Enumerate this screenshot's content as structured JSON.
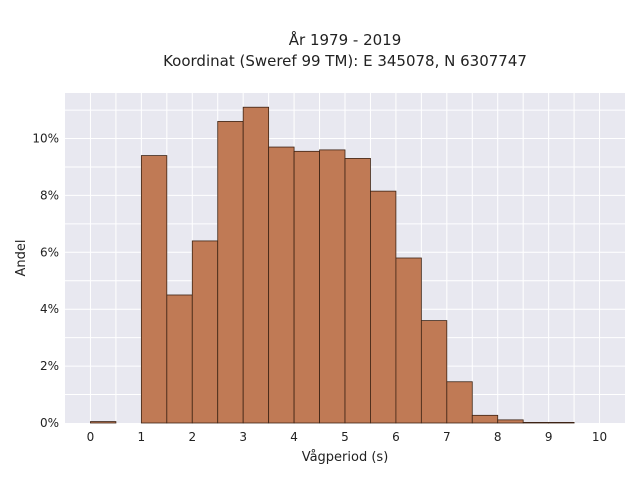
{
  "chart_data": {
    "type": "bar",
    "title_lines": [
      "År 1979 - 2019",
      "Koordinat (Sweref 99 TM): E 345078, N 6307747"
    ],
    "xlabel": "Vågperiod (s)",
    "ylabel": "Andel",
    "xlim": [
      -0.5,
      10.5
    ],
    "ylim": [
      0,
      0.116
    ],
    "x_ticks": [
      0,
      1,
      2,
      3,
      4,
      5,
      6,
      7,
      8,
      9,
      10
    ],
    "x_tick_labels": [
      "0",
      "1",
      "2",
      "3",
      "4",
      "5",
      "6",
      "7",
      "8",
      "9",
      "10"
    ],
    "y_ticks": [
      0,
      0.02,
      0.04,
      0.06,
      0.08,
      0.1
    ],
    "y_tick_labels": [
      "0%",
      "2%",
      "4%",
      "6%",
      "8%",
      "10%"
    ],
    "bin_width": 0.5,
    "bins": [
      {
        "x0": 0.0,
        "value": 0.0005
      },
      {
        "x0": 0.5,
        "value": 0.0
      },
      {
        "x0": 1.0,
        "value": 0.094
      },
      {
        "x0": 1.5,
        "value": 0.045
      },
      {
        "x0": 2.0,
        "value": 0.064
      },
      {
        "x0": 2.5,
        "value": 0.106
      },
      {
        "x0": 3.0,
        "value": 0.111
      },
      {
        "x0": 3.5,
        "value": 0.097
      },
      {
        "x0": 4.0,
        "value": 0.0955
      },
      {
        "x0": 4.5,
        "value": 0.096
      },
      {
        "x0": 5.0,
        "value": 0.093
      },
      {
        "x0": 5.5,
        "value": 0.0815
      },
      {
        "x0": 6.0,
        "value": 0.058
      },
      {
        "x0": 6.5,
        "value": 0.036
      },
      {
        "x0": 7.0,
        "value": 0.0145
      },
      {
        "x0": 7.5,
        "value": 0.0027
      },
      {
        "x0": 8.0,
        "value": 0.0011
      },
      {
        "x0": 8.5,
        "value": 0.0002
      },
      {
        "x0": 9.0,
        "value": 0.0001
      }
    ],
    "bar_color": "#c07a55",
    "bar_edge_color": "#3d2314",
    "plot_background": "#e8e8f0",
    "grid_color": "#ffffff",
    "grid": true,
    "legend": "none"
  }
}
